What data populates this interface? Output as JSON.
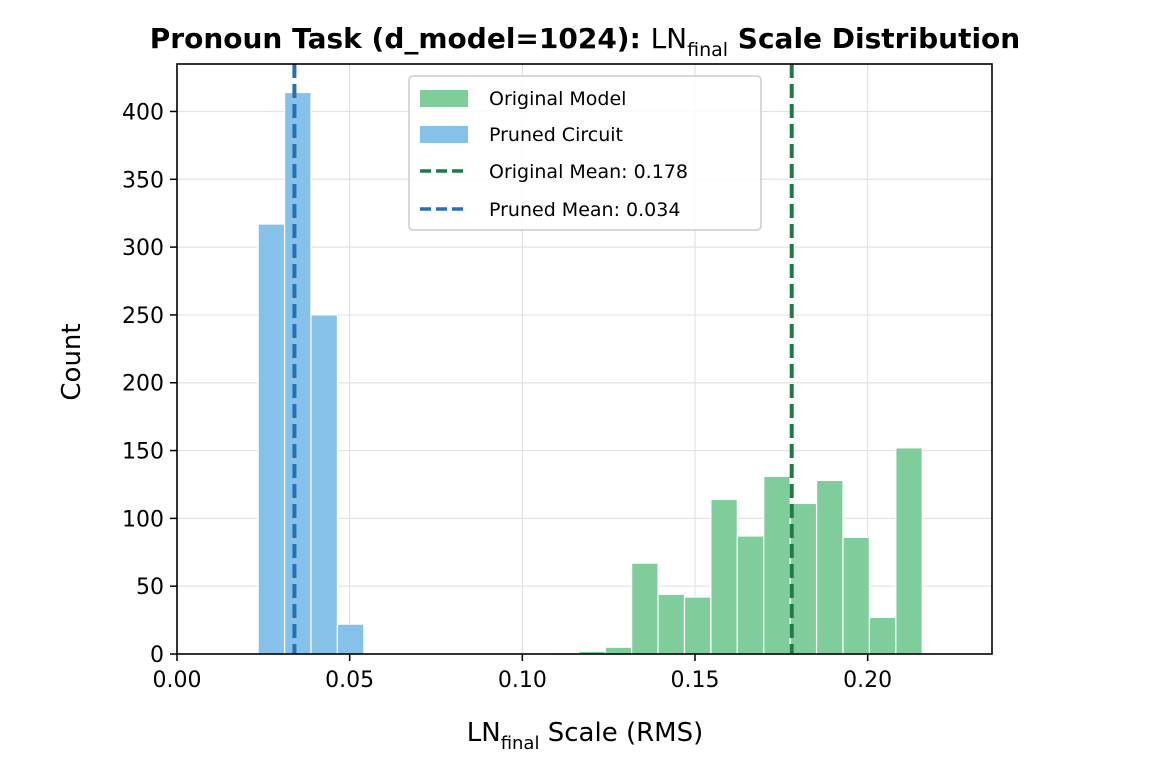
{
  "chart_data": {
    "type": "histogram",
    "title_parts": {
      "prefix": "Pronoun Task (d_model=1024): ",
      "ln_base": "LN",
      "ln_sub": "final",
      "suffix": " Scale Distribution"
    },
    "xlabel_parts": {
      "base": "LN",
      "sub": "final",
      "suffix": " Scale (RMS)"
    },
    "ylabel": "Count",
    "xlim": [
      0.0,
      0.236
    ],
    "ylim": [
      0,
      435
    ],
    "x_ticks": [
      0.0,
      0.05,
      0.1,
      0.15,
      0.2
    ],
    "x_tick_labels": [
      "0.00",
      "0.05",
      "0.10",
      "0.15",
      "0.20"
    ],
    "y_ticks": [
      0,
      50,
      100,
      150,
      200,
      250,
      300,
      350,
      400
    ],
    "y_tick_labels": [
      "0",
      "50",
      "100",
      "150",
      "200",
      "250",
      "300",
      "350",
      "400"
    ],
    "grid": true,
    "legend_position": "upper center",
    "series": [
      {
        "name": "Original Model",
        "color": "#7ecd9b",
        "bin_width": 0.00765,
        "bins": [
          {
            "x0": 0.1087,
            "count": 1
          },
          {
            "x0": 0.11635,
            "count": 2
          },
          {
            "x0": 0.124,
            "count": 5
          },
          {
            "x0": 0.13165,
            "count": 67
          },
          {
            "x0": 0.1393,
            "count": 44
          },
          {
            "x0": 0.14695,
            "count": 42
          },
          {
            "x0": 0.1546,
            "count": 114
          },
          {
            "x0": 0.16225,
            "count": 87
          },
          {
            "x0": 0.1699,
            "count": 131
          },
          {
            "x0": 0.17755,
            "count": 111
          },
          {
            "x0": 0.1852,
            "count": 128
          },
          {
            "x0": 0.19285,
            "count": 86
          },
          {
            "x0": 0.2005,
            "count": 27
          },
          {
            "x0": 0.20815,
            "count": 152
          }
        ]
      },
      {
        "name": "Pruned Circuit",
        "color": "#85c1e9",
        "bin_width": 0.00765,
        "bins": [
          {
            "x0": 0.0235,
            "count": 317
          },
          {
            "x0": 0.03115,
            "count": 414
          },
          {
            "x0": 0.0388,
            "count": 250
          },
          {
            "x0": 0.04645,
            "count": 22
          }
        ]
      }
    ],
    "mean_lines": [
      {
        "name": "Original Mean: 0.178",
        "x": 0.178,
        "color": "#1e7b45"
      },
      {
        "name": "Pruned Mean: 0.034",
        "x": 0.034,
        "color": "#2272b4"
      }
    ]
  }
}
